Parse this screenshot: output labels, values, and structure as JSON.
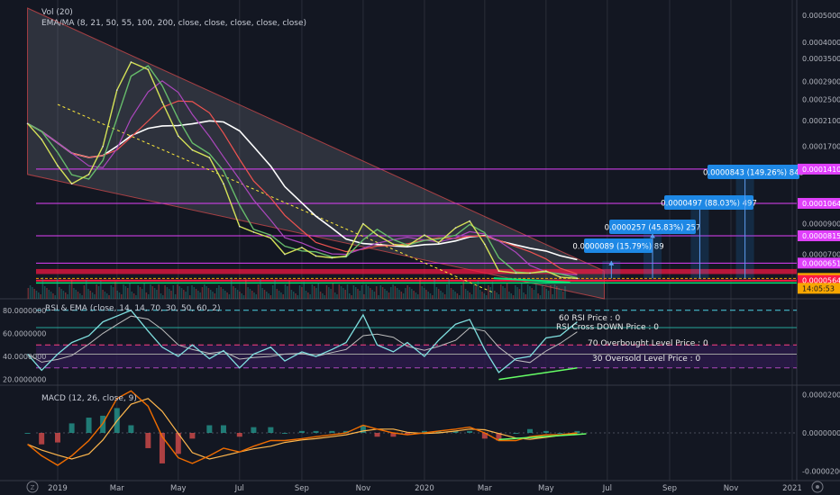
{
  "chart_data": [
    {
      "type": "line",
      "pane": "price",
      "labels": {
        "vol": "Vol (20)",
        "ema": "EMA/MA (8, 21, 50, 55, 100, 200, close, close, close, close, close)"
      },
      "y_axis_labels": [
        "0.0005000",
        "0.0004000",
        "0.0003500",
        "0.0002900",
        "0.0002500",
        "0.0002100",
        "0.0001700",
        "0.0001410",
        "0.0001064",
        "0.0000900",
        "0.0000815",
        "0.0000700",
        "0.0000651",
        "0.0000574",
        "0.0000564"
      ],
      "price_tags": [
        {
          "text": "0.0001410",
          "color": "#e040fb"
        },
        {
          "text": "0.0001064",
          "color": "#e040fb"
        },
        {
          "text": "0.0000815",
          "color": "#e040fb"
        },
        {
          "text": "0.0000651",
          "color": "#e040fb"
        },
        {
          "text": "0.0000574",
          "color": "#f7a600"
        },
        {
          "text": "14:05:53",
          "color": "#f7a600"
        },
        {
          "text": "0.0000564",
          "color": "#ff1744"
        }
      ],
      "price_series": [
        [
          "2018-12-02",
          0.000205
        ],
        [
          "2018-12-16",
          0.00018
        ],
        [
          "2019-01-01",
          0.000145
        ],
        [
          "2019-01-15",
          0.000125
        ],
        [
          "2019-02-01",
          0.000135
        ],
        [
          "2019-02-15",
          0.00017
        ],
        [
          "2019-03-01",
          0.00027
        ],
        [
          "2019-03-15",
          0.00034
        ],
        [
          "2019-04-01",
          0.00032
        ],
        [
          "2019-04-15",
          0.000245
        ],
        [
          "2019-05-01",
          0.000185
        ],
        [
          "2019-05-15",
          0.000165
        ],
        [
          "2019-06-01",
          0.000155
        ],
        [
          "2019-06-15",
          0.000125
        ],
        [
          "2019-07-01",
          8.8e-05
        ],
        [
          "2019-07-15",
          8.4e-05
        ],
        [
          "2019-08-01",
          8e-05
        ],
        [
          "2019-08-15",
          7e-05
        ],
        [
          "2019-09-01",
          7.4e-05
        ],
        [
          "2019-09-15",
          6.9e-05
        ],
        [
          "2019-10-01",
          6.8e-05
        ],
        [
          "2019-10-15",
          6.9e-05
        ],
        [
          "2019-11-01",
          9e-05
        ],
        [
          "2019-11-15",
          8.2e-05
        ],
        [
          "2019-12-01",
          7.6e-05
        ],
        [
          "2019-12-15",
          7.5e-05
        ],
        [
          "2020-01-01",
          8.2e-05
        ],
        [
          "2020-01-15",
          7.7e-05
        ],
        [
          "2020-02-01",
          8.7e-05
        ],
        [
          "2020-02-15",
          9.2e-05
        ],
        [
          "2020-03-01",
          7.6e-05
        ],
        [
          "2020-03-15",
          6.1e-05
        ],
        [
          "2020-04-01",
          6e-05
        ],
        [
          "2020-04-15",
          6e-05
        ],
        [
          "2020-05-01",
          6.1e-05
        ],
        [
          "2020-05-15",
          5.8e-05
        ],
        [
          "2020-06-01",
          5.74e-05
        ]
      ],
      "horizontal_levels": [
        {
          "price": 0.000141,
          "color": "#e040fb"
        },
        {
          "price": 0.0001064,
          "color": "#e040fb"
        },
        {
          "price": 8.15e-05,
          "color": "#e040fb"
        },
        {
          "price": 6.51e-05,
          "color": "#e040fb"
        },
        {
          "price": 5.74e-05,
          "color": "#f7a600"
        },
        {
          "price": 5.64e-05,
          "color": "#ff1744"
        }
      ],
      "target_labels": [
        "0.0000089 (15.79%) 89",
        "0.0000257 (45.83%) 257",
        "0.0000497 (88.03%) 497",
        "0.0000843 (149.26%) 843"
      ],
      "colors": {
        "ema_fast": "#d4e157",
        "ema_mid": "#66bb6a",
        "ma_50": "#ab47bc",
        "ma_100": "#ef5350",
        "ma_200": "#ffffff",
        "channel": "#787b86",
        "target_box": "#1e88e5"
      }
    },
    {
      "type": "line",
      "pane": "rsi",
      "label": "RSI & EMA (close, 14, 14, 70, 30, 50, 60, 2)",
      "y_axis_labels": [
        "80.0000000",
        "60.0000000",
        "40.0000000",
        "20.0000000"
      ],
      "ylim": [
        15,
        90
      ],
      "rsi": [
        [
          "2018-12-02",
          42
        ],
        [
          "2018-12-16",
          28
        ],
        [
          "2019-01-01",
          42
        ],
        [
          "2019-01-15",
          52
        ],
        [
          "2019-02-01",
          58
        ],
        [
          "2019-02-15",
          70
        ],
        [
          "2019-03-01",
          75
        ],
        [
          "2019-03-15",
          80
        ],
        [
          "2019-04-01",
          62
        ],
        [
          "2019-04-15",
          48
        ],
        [
          "2019-05-01",
          40
        ],
        [
          "2019-05-15",
          50
        ],
        [
          "2019-06-01",
          38
        ],
        [
          "2019-06-15",
          45
        ],
        [
          "2019-07-01",
          30
        ],
        [
          "2019-07-15",
          42
        ],
        [
          "2019-08-01",
          48
        ],
        [
          "2019-08-15",
          36
        ],
        [
          "2019-09-01",
          44
        ],
        [
          "2019-09-15",
          40
        ],
        [
          "2019-10-01",
          46
        ],
        [
          "2019-10-15",
          52
        ],
        [
          "2019-11-01",
          76
        ],
        [
          "2019-11-15",
          50
        ],
        [
          "2019-12-01",
          44
        ],
        [
          "2019-12-15",
          52
        ],
        [
          "2020-01-01",
          40
        ],
        [
          "2020-01-15",
          54
        ],
        [
          "2020-02-01",
          68
        ],
        [
          "2020-02-15",
          72
        ],
        [
          "2020-03-01",
          46
        ],
        [
          "2020-03-15",
          26
        ],
        [
          "2020-04-01",
          38
        ],
        [
          "2020-04-15",
          40
        ],
        [
          "2020-05-01",
          56
        ],
        [
          "2020-05-15",
          58
        ],
        [
          "2020-06-01",
          70
        ]
      ],
      "levels": [
        {
          "value": 80,
          "label": "60 RSI Price : 0",
          "color": "#4dd0e1"
        },
        {
          "value": 65,
          "label": "RSI Cross DOWN Price : 0",
          "color": "#26a69a"
        },
        {
          "value": 50,
          "label": "70 Overbought Level Price : 0",
          "color": "#ff4081"
        },
        {
          "value": 42,
          "label": "",
          "color": "#9e9e9e"
        },
        {
          "value": 30,
          "label": "30 Oversold Level Price : 0",
          "color": "#ab47bc"
        }
      ],
      "colors": {
        "rsi": "#7fdfdf",
        "ema": "#bdbdbd",
        "band": "#2d1b4e",
        "trend": "#66ff66"
      }
    },
    {
      "type": "line",
      "pane": "macd",
      "label": "MACD (12, 26, close, 9)",
      "y_axis_labels": [
        "0.0000200",
        "0.0000000",
        "-0.0000200"
      ],
      "ylim": [
        -2.5e-05,
        2.5e-05
      ],
      "macd": [
        [
          "2018-12-02",
          -6e-06
        ],
        [
          "2018-12-16",
          -1.2e-05
        ],
        [
          "2019-01-01",
          -1.7e-05
        ],
        [
          "2019-01-15",
          -1.2e-05
        ],
        [
          "2019-02-01",
          -4e-06
        ],
        [
          "2019-02-15",
          5e-06
        ],
        [
          "2019-03-01",
          1.8e-05
        ],
        [
          "2019-03-15",
          2.2e-05
        ],
        [
          "2019-04-01",
          1.4e-05
        ],
        [
          "2019-04-15",
          -2e-06
        ],
        [
          "2019-05-01",
          -1.3e-05
        ],
        [
          "2019-05-15",
          -1.6e-05
        ],
        [
          "2019-06-01",
          -1.2e-05
        ],
        [
          "2019-06-15",
          -8e-06
        ],
        [
          "2019-07-01",
          -1e-05
        ],
        [
          "2019-07-15",
          -7e-06
        ],
        [
          "2019-08-01",
          -4e-06
        ],
        [
          "2019-08-15",
          -4e-06
        ],
        [
          "2019-09-01",
          -3e-06
        ],
        [
          "2019-09-15",
          -2e-06
        ],
        [
          "2019-10-01",
          -1e-06
        ],
        [
          "2019-10-15",
          0
        ],
        [
          "2019-11-01",
          4e-06
        ],
        [
          "2019-11-15",
          2e-06
        ],
        [
          "2019-12-01",
          0
        ],
        [
          "2019-12-15",
          -1e-06
        ],
        [
          "2020-01-01",
          0
        ],
        [
          "2020-01-15",
          1e-06
        ],
        [
          "2020-02-01",
          2e-06
        ],
        [
          "2020-02-15",
          3e-06
        ],
        [
          "2020-03-01",
          0
        ],
        [
          "2020-03-15",
          -4e-06
        ],
        [
          "2020-04-01",
          -4e-06
        ],
        [
          "2020-04-15",
          -2e-06
        ],
        [
          "2020-05-01",
          -1e-06
        ],
        [
          "2020-05-15",
          -1e-06
        ],
        [
          "2020-06-01",
          0
        ]
      ],
      "colors": {
        "macd": "#ef6c00",
        "signal": "#ffb74d",
        "hist_up": "#26a69a",
        "hist_down": "#ef5350",
        "trend": "#66ff66"
      }
    }
  ],
  "x_axis": {
    "labels": [
      {
        "date": "2019-01-01",
        "text": "2019"
      },
      {
        "date": "2019-03-01",
        "text": "Mar"
      },
      {
        "date": "2019-05-01",
        "text": "May"
      },
      {
        "date": "2019-07-01",
        "text": "Jul"
      },
      {
        "date": "2019-09-01",
        "text": "Sep"
      },
      {
        "date": "2019-11-01",
        "text": "Nov"
      },
      {
        "date": "2020-01-01",
        "text": "2020"
      },
      {
        "date": "2020-03-01",
        "text": "Mar"
      },
      {
        "date": "2020-05-01",
        "text": "May"
      },
      {
        "date": "2020-07-01",
        "text": "Jul"
      },
      {
        "date": "2020-09-01",
        "text": "Sep"
      },
      {
        "date": "2020-11-01",
        "text": "Nov"
      },
      {
        "date": "2021-01-01",
        "text": "2021"
      }
    ]
  },
  "footer": {
    "timezone_icon": "Z",
    "settings_icon": "gear-icon"
  }
}
